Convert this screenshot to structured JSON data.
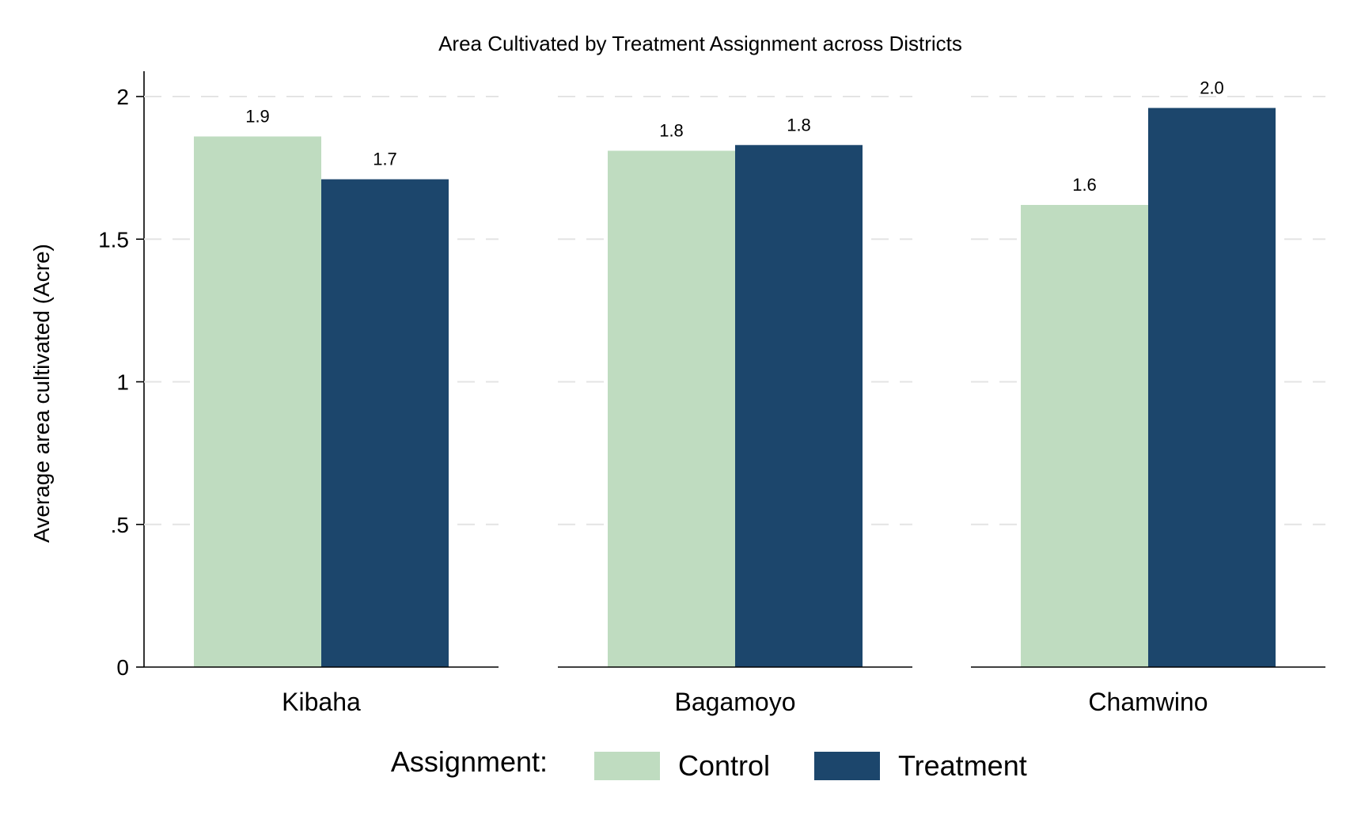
{
  "chart_data": {
    "type": "bar",
    "title": "Area Cultivated by Treatment Assignment across Districts",
    "ylabel": "Average area cultivated (Acre)",
    "xlabel": "",
    "ylim": [
      0,
      2.08
    ],
    "yticks": [
      0,
      0.5,
      1,
      1.5,
      2
    ],
    "ytick_labels": [
      "0",
      ".5",
      "1",
      "1.5",
      "2"
    ],
    "grid": true,
    "categories": [
      "Kibaha",
      "Bagamoyo",
      "Chamwino"
    ],
    "series": [
      {
        "name": "Control",
        "color": "#bfdcc0",
        "values": [
          1.86,
          1.81,
          1.62
        ],
        "labels": [
          "1.9",
          "1.8",
          "1.6"
        ]
      },
      {
        "name": "Treatment",
        "color": "#1c466c",
        "values": [
          1.71,
          1.83,
          1.96
        ],
        "labels": [
          "1.7",
          "1.8",
          "2.0"
        ]
      }
    ],
    "legend": {
      "title": "Assignment:",
      "placement": "bottom"
    }
  }
}
